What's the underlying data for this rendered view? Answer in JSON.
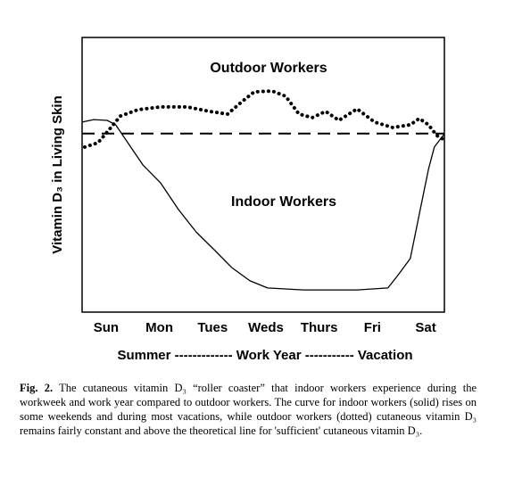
{
  "chart_data": {
    "type": "line",
    "y_label": "Vitamin D₃ in Living Skin",
    "categories": [
      "Sun",
      "Mon",
      "Tues",
      "Weds",
      "Thurs",
      "Fri",
      "Sat"
    ],
    "xlim": [
      -0.45,
      6.35
    ],
    "ylim": [
      0,
      100
    ],
    "reference": 65,
    "annotations": [
      "Outdoor Workers",
      "Indoor Workers"
    ],
    "period_label": "Summer ------------- Work Year ----------- Vacation",
    "series": [
      {
        "name": "Indoor Workers",
        "style": "solid",
        "color": "#000000",
        "x": [
          -0.45,
          -0.23,
          0.02,
          0.18,
          0.35,
          0.69,
          1.02,
          1.36,
          1.69,
          2.03,
          2.36,
          2.7,
          3.03,
          3.7,
          4.71,
          5.29,
          5.46,
          5.71,
          5.88,
          6.05,
          6.16,
          6.35
        ],
        "values": [
          69.2,
          70.1,
          69.8,
          68.2,
          63.3,
          53.6,
          47.1,
          37.3,
          29.2,
          22.7,
          16.2,
          11.4,
          8.8,
          8.1,
          8.1,
          8.8,
          13,
          19.5,
          35.7,
          51.9,
          60.1,
          64.9
        ]
      },
      {
        "name": "Outdoor Workers",
        "style": "dotted",
        "color": "#000000",
        "x": [
          -0.4,
          -0.15,
          0.02,
          0.27,
          0.6,
          1.02,
          1.52,
          1.94,
          2.28,
          2.53,
          2.78,
          3.12,
          3.37,
          3.62,
          3.87,
          4.12,
          4.37,
          4.71,
          5.04,
          5.38,
          5.71,
          5.88,
          6.05,
          6.21,
          6.35
        ],
        "values": [
          60.1,
          61.7,
          65.6,
          71.4,
          73.7,
          74.7,
          74.7,
          73.1,
          72.1,
          76.3,
          80.2,
          80.5,
          78.6,
          72.1,
          70.8,
          73.1,
          69.8,
          74,
          69.2,
          67.2,
          68.2,
          70.5,
          68.2,
          64.3,
          62.7
        ]
      }
    ]
  },
  "caption": {
    "label": "Fig. 2.",
    "text": "The cutaneous vitamin D₃ “roller coaster” that indoor workers experience during the workweek and work year compared to outdoor workers. The curve for indoor workers (solid) rises on some weekends and during most vacations, while outdoor workers (dotted) cutaneous vitamin D₃ remains fairly constant and above the theoretical line for 'sufficient' cutaneous vitamin D₃."
  }
}
